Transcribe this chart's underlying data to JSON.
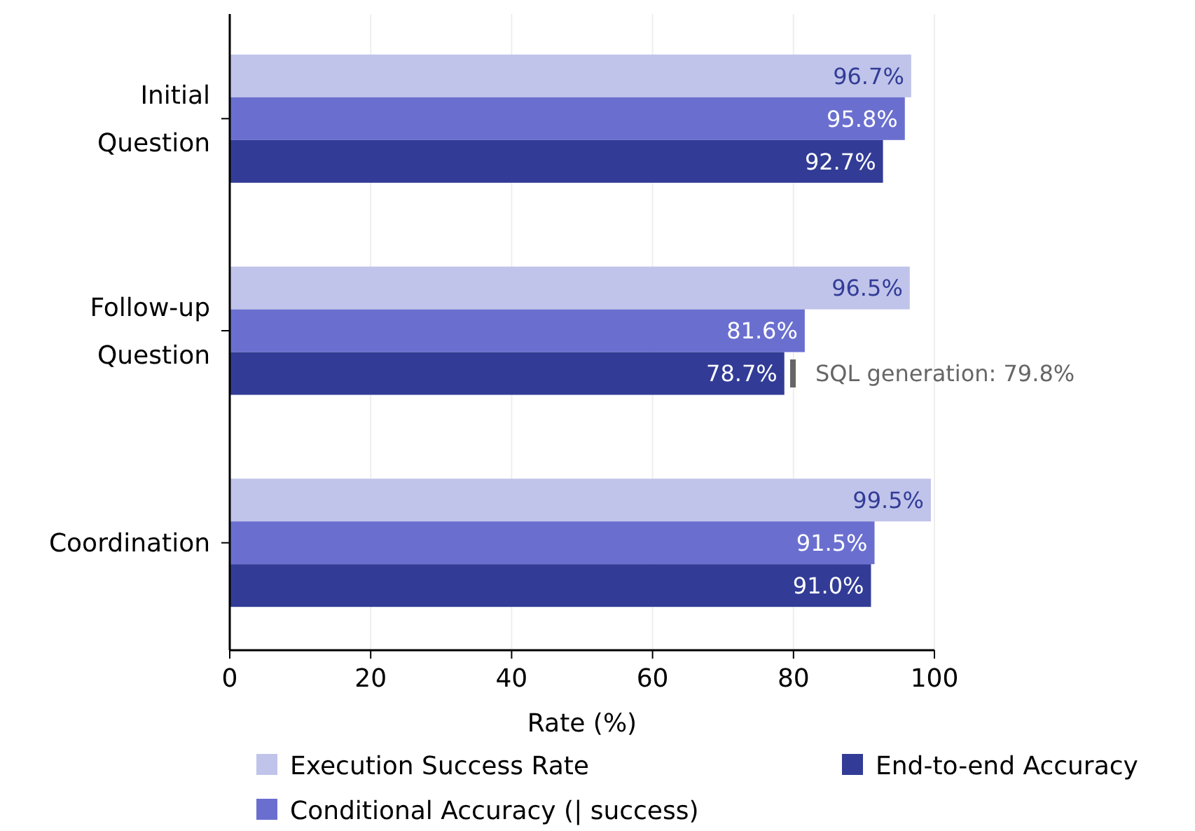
{
  "chart_data": {
    "type": "bar",
    "orientation": "horizontal",
    "categories": [
      "Initial\nQuestion",
      "Follow-up\nQuestion",
      "Coordination"
    ],
    "series": [
      {
        "name": "Execution Success Rate",
        "color": "#c0c4ea",
        "values": [
          96.7,
          96.5,
          99.5
        ],
        "value_labels": [
          "96.7%",
          "96.5%",
          "99.5%"
        ]
      },
      {
        "name": "Conditional Accuracy (| success)",
        "color": "#6a6fcf",
        "values": [
          95.8,
          81.6,
          91.5
        ],
        "value_labels": [
          "95.8%",
          "81.6%",
          "91.5%"
        ]
      },
      {
        "name": "End-to-end Accuracy",
        "color": "#323c96",
        "values": [
          92.7,
          78.7,
          91.0
        ],
        "value_labels": [
          "92.7%",
          "78.7%",
          "91.0%"
        ]
      }
    ],
    "xlabel": "Rate (%)",
    "xlim": [
      0,
      100
    ],
    "xticks": [
      0,
      20,
      40,
      60,
      80,
      100
    ],
    "grid": "x",
    "legend": "bottom",
    "annotations": [
      "SQL generation: 79.8%"
    ]
  }
}
